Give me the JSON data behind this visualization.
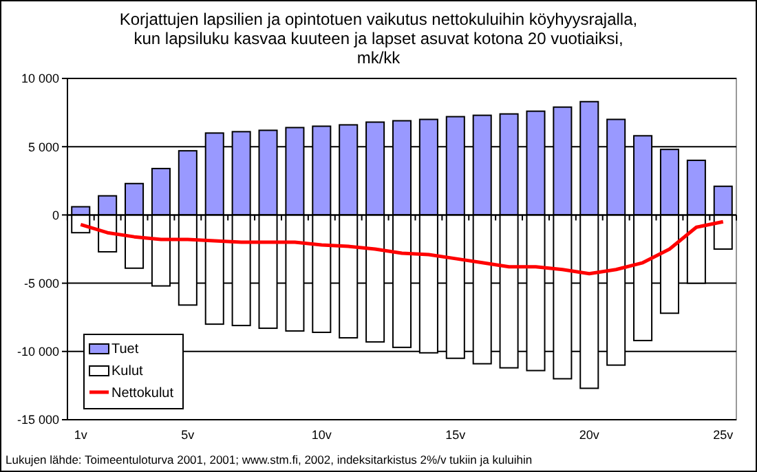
{
  "chart_data": {
    "type": "bar",
    "title": "Korjattujen lapsilien ja opintotuen vaikutus nettokuluihin köyhyysrajalla,\nkun lapsiluku kasvaa kuuteen ja lapset asuvat kotona 20 vuotiaiksi,\nmk/kk",
    "categories": [
      "1v",
      null,
      null,
      null,
      "5v",
      null,
      null,
      null,
      null,
      "10v",
      null,
      null,
      null,
      null,
      "15v",
      null,
      null,
      null,
      null,
      "20v",
      null,
      null,
      null,
      null,
      "25v"
    ],
    "series": [
      {
        "name": "Tuet",
        "color": "#9999ff",
        "values": [
          600,
          1400,
          2300,
          3400,
          4700,
          6000,
          6100,
          6200,
          6400,
          6500,
          6600,
          6800,
          6900,
          7000,
          7200,
          7300,
          7400,
          7600,
          7900,
          8300,
          7000,
          5800,
          4800,
          4000,
          2100
        ]
      },
      {
        "name": "Kulut",
        "color": "#ffffff",
        "values": [
          -1300,
          -2700,
          -3900,
          -5200,
          -6600,
          -8000,
          -8100,
          -8300,
          -8500,
          -8600,
          -9000,
          -9300,
          -9700,
          -10100,
          -10500,
          -10900,
          -11200,
          -11400,
          -12000,
          -12700,
          -11000,
          -9200,
          -7200,
          -5000,
          -2500
        ]
      },
      {
        "name": "Nettokulut",
        "type": "line",
        "color": "#ff0000",
        "values": [
          -700,
          -1300,
          -1600,
          -1800,
          -1800,
          -1900,
          -2000,
          -2000,
          -2000,
          -2200,
          -2300,
          -2500,
          -2800,
          -2900,
          -3200,
          -3500,
          -3800,
          -3800,
          -4000,
          -4300,
          -4000,
          -3500,
          -2500,
          -900,
          -500
        ]
      }
    ],
    "stacked": true,
    "ylim": [
      -15000,
      10000
    ],
    "yticks": [
      {
        "value": -15000,
        "label": "-15 000"
      },
      {
        "value": -10000,
        "label": "-10 000"
      },
      {
        "value": -5000,
        "label": "-5 000"
      },
      0,
      {
        "value": 5000,
        "label": "5 000"
      },
      {
        "value": 10000,
        "label": "10 000"
      }
    ],
    "grid": "y",
    "legend": "bottom left",
    "marker": "none",
    "annotations": [
      "Lukujen lähde: Toimeentuloturva 2001, 2001; www.stm.fi, 2002, indeksitarkistus 2%/v tukiin ja kuluihin"
    ]
  }
}
